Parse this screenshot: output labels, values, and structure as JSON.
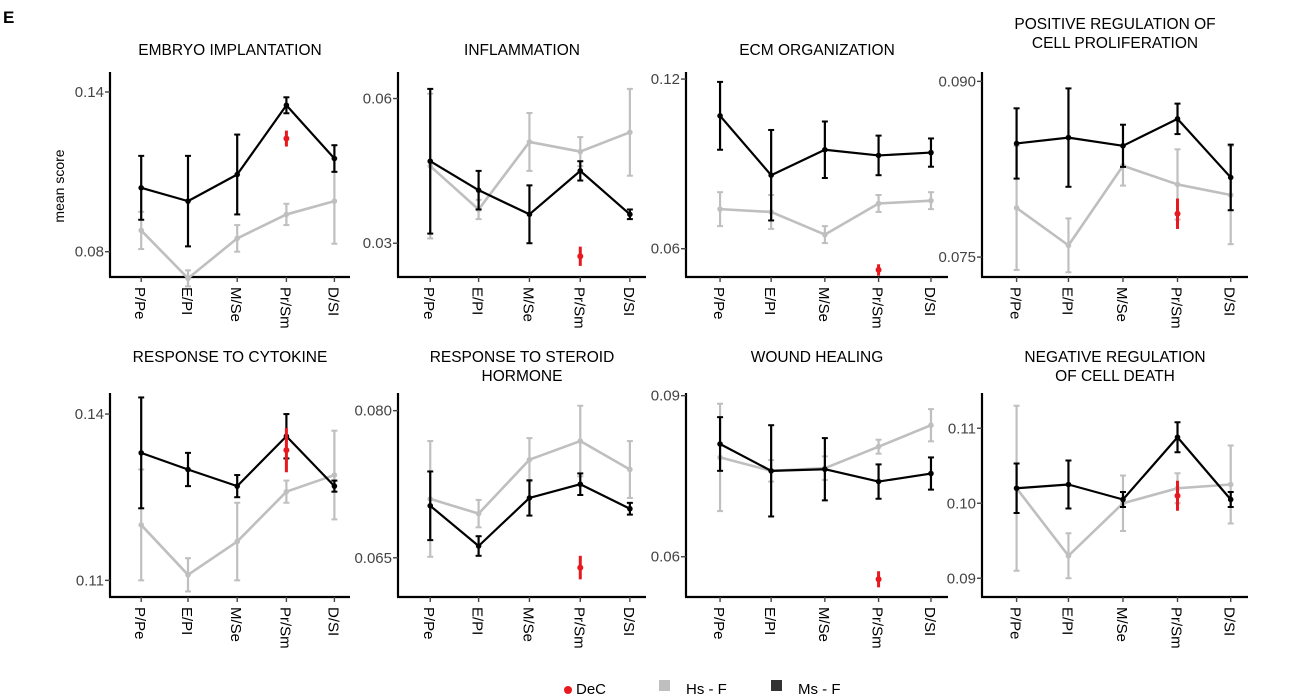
{
  "panel_label": "E",
  "ylabel": "mean score",
  "legend": [
    {
      "label": "DeC",
      "color": "#e8191e",
      "shape": "dot"
    },
    {
      "label": "Hs - F",
      "color": "#bfbfbf",
      "shape": "square"
    },
    {
      "label": "Ms - F",
      "color": "#333333",
      "shape": "square"
    }
  ],
  "colors": {
    "hs": "#bfbfbf",
    "ms": "#000000",
    "dec": "#e8191e"
  },
  "chart_data": [
    {
      "type": "line",
      "title": [
        "EMBRYO IMPLANTATION"
      ],
      "categories": [
        "P/Pe",
        "E/PI",
        "M/Se",
        "Pr/Sm",
        "D/SI"
      ],
      "ylim": [
        0.0705,
        0.1475
      ],
      "yticks": [
        0.08,
        0.14
      ],
      "ytick_labels": [
        "0.08",
        "0.14"
      ],
      "series": [
        {
          "name": "Hs - F",
          "values": [
            0.088,
            0.07,
            0.085,
            0.094,
            0.099
          ],
          "err": [
            0.007,
            0.003,
            0.005,
            0.004,
            0.016
          ]
        },
        {
          "name": "Ms - F",
          "values": [
            0.104,
            0.099,
            0.109,
            0.135,
            0.115
          ],
          "err": [
            0.012,
            0.017,
            0.015,
            0.003,
            0.005
          ]
        },
        {
          "name": "DeC",
          "x": "Pr/Sm",
          "value": 0.1225,
          "err": 0.003
        }
      ]
    },
    {
      "type": "line",
      "title": [
        "INFLAMMATION"
      ],
      "categories": [
        "P/Pe",
        "E/PI",
        "M/Se",
        "Pr/Sm",
        "D/SI"
      ],
      "ylim": [
        0.023,
        0.0655
      ],
      "yticks": [
        0.03,
        0.06
      ],
      "ytick_labels": [
        "0.03",
        "0.06"
      ],
      "series": [
        {
          "name": "Hs - F",
          "values": [
            0.046,
            0.037,
            0.051,
            0.049,
            0.053
          ],
          "err": [
            0.015,
            0.002,
            0.006,
            0.003,
            0.009
          ]
        },
        {
          "name": "Ms - F",
          "values": [
            0.047,
            0.041,
            0.036,
            0.045,
            0.036
          ],
          "err": [
            0.015,
            0.004,
            0.006,
            0.002,
            0.001
          ]
        },
        {
          "name": "DeC",
          "x": "Pr/Sm",
          "value": 0.0273,
          "err": 0.002
        }
      ]
    },
    {
      "type": "line",
      "title": [
        "ECM ORGANIZATION"
      ],
      "categories": [
        "P/Pe",
        "E/PI",
        "M/Se",
        "Pr/Sm",
        "D/SI"
      ],
      "ylim": [
        0.05,
        0.1225
      ],
      "yticks": [
        0.06,
        0.12
      ],
      "ytick_labels": [
        "0.06",
        "0.12"
      ],
      "series": [
        {
          "name": "Hs - F",
          "values": [
            0.074,
            0.073,
            0.065,
            0.076,
            0.077
          ],
          "err": [
            0.006,
            0.006,
            0.003,
            0.003,
            0.003
          ]
        },
        {
          "name": "Ms - F",
          "values": [
            0.107,
            0.086,
            0.095,
            0.093,
            0.094
          ],
          "err": [
            0.012,
            0.016,
            0.01,
            0.007,
            0.005
          ]
        },
        {
          "name": "DeC",
          "x": "Pr/Sm",
          "value": 0.0525,
          "err": 0.002
        }
      ]
    },
    {
      "type": "line",
      "title": [
        "POSITIVE REGULATION OF",
        "CELL PROLIFERATION"
      ],
      "categories": [
        "P/Pe",
        "E/PI",
        "M/Se",
        "Pr/Sm",
        "D/SI"
      ],
      "ylim": [
        0.0733,
        0.0908
      ],
      "yticks": [
        0.075,
        0.09
      ],
      "ytick_labels": [
        "0.075",
        "0.090"
      ],
      "series": [
        {
          "name": "Hs - F",
          "values": [
            0.0792,
            0.076,
            0.0828,
            0.0812,
            0.0803
          ],
          "err": [
            0.0053,
            0.0023,
            0.0017,
            0.003,
            0.0042
          ]
        },
        {
          "name": "Ms - F",
          "values": [
            0.0847,
            0.0852,
            0.0845,
            0.0868,
            0.0818
          ],
          "err": [
            0.003,
            0.0042,
            0.0018,
            0.0013,
            0.0028
          ]
        },
        {
          "name": "DeC",
          "x": "Pr/Sm",
          "value": 0.0787,
          "err": 0.0013
        }
      ]
    },
    {
      "type": "line",
      "title": [
        "RESPONSE TO CYTOKINE"
      ],
      "categories": [
        "P/Pe",
        "E/PI",
        "M/Se",
        "Pr/Sm",
        "D/SI"
      ],
      "ylim": [
        0.107,
        0.1438
      ],
      "yticks": [
        0.11,
        0.14
      ],
      "ytick_labels": [
        "0.11",
        "0.14"
      ],
      "series": [
        {
          "name": "Hs - F",
          "values": [
            0.12,
            0.111,
            0.117,
            0.126,
            0.129
          ],
          "err": [
            0.01,
            0.003,
            0.007,
            0.002,
            0.008
          ]
        },
        {
          "name": "Ms - F",
          "values": [
            0.133,
            0.13,
            0.127,
            0.136,
            0.127
          ],
          "err": [
            0.01,
            0.003,
            0.002,
            0.004,
            0.001
          ]
        },
        {
          "name": "DeC",
          "x": "Pr/Sm",
          "value": 0.1335,
          "err": 0.004
        }
      ]
    },
    {
      "type": "line",
      "title": [
        "RESPONSE TO STEROID",
        "HORMONE"
      ],
      "categories": [
        "P/Pe",
        "E/PI",
        "M/Se",
        "Pr/Sm",
        "D/SI"
      ],
      "ylim": [
        0.061,
        0.0818
      ],
      "yticks": [
        0.065,
        0.08
      ],
      "ytick_labels": [
        "0.065",
        "0.080"
      ],
      "series": [
        {
          "name": "Hs - F",
          "values": [
            0.071,
            0.0695,
            0.075,
            0.0769,
            0.074
          ],
          "err": [
            0.0059,
            0.0014,
            0.0022,
            0.0036,
            0.0029
          ]
        },
        {
          "name": "Ms - F",
          "values": [
            0.0703,
            0.0662,
            0.0711,
            0.0725,
            0.07
          ],
          "err": [
            0.0035,
            0.001,
            0.0018,
            0.0011,
            0.0006
          ]
        },
        {
          "name": "DeC",
          "x": "Pr/Sm",
          "value": 0.064,
          "err": 0.0012
        }
      ]
    },
    {
      "type": "line",
      "title": [
        "WOUND HEALING"
      ],
      "categories": [
        "P/Pe",
        "E/PI",
        "M/Se",
        "Pr/Sm",
        "D/SI"
      ],
      "ylim": [
        0.0525,
        0.0905
      ],
      "yticks": [
        0.06,
        0.09
      ],
      "ytick_labels": [
        "0.06",
        "0.09"
      ],
      "series": [
        {
          "name": "Hs - F",
          "values": [
            0.0785,
            0.076,
            0.0765,
            0.0805,
            0.0845
          ],
          "err": [
            0.01,
            0.002,
            0.0022,
            0.0013,
            0.003
          ]
        },
        {
          "name": "Ms - F",
          "values": [
            0.081,
            0.076,
            0.0763,
            0.074,
            0.0755
          ],
          "err": [
            0.005,
            0.0085,
            0.0058,
            0.0032,
            0.003
          ]
        },
        {
          "name": "DeC",
          "x": "Pr/Sm",
          "value": 0.0558,
          "err": 0.0015
        }
      ]
    },
    {
      "type": "line",
      "title": [
        "NEGATIVE REGULATION",
        "OF CELL DEATH"
      ],
      "categories": [
        "P/Pe",
        "E/PI",
        "M/Se",
        "Pr/Sm",
        "D/SI"
      ],
      "ylim": [
        0.0875,
        0.1147
      ],
      "yticks": [
        0.09,
        0.1,
        0.11
      ],
      "ytick_labels": [
        "0.09",
        "0.10",
        "0.11"
      ],
      "series": [
        {
          "name": "Hs - F",
          "values": [
            0.102,
            0.093,
            0.1,
            0.102,
            0.1025
          ],
          "err": [
            0.011,
            0.003,
            0.0037,
            0.002,
            0.0052
          ]
        },
        {
          "name": "Ms - F",
          "values": [
            0.102,
            0.1025,
            0.1005,
            0.1088,
            0.1005
          ],
          "err": [
            0.0033,
            0.0032,
            0.001,
            0.002,
            0.001
          ]
        },
        {
          "name": "DeC",
          "x": "Pr/Sm",
          "value": 0.101,
          "err": 0.002
        }
      ]
    }
  ]
}
